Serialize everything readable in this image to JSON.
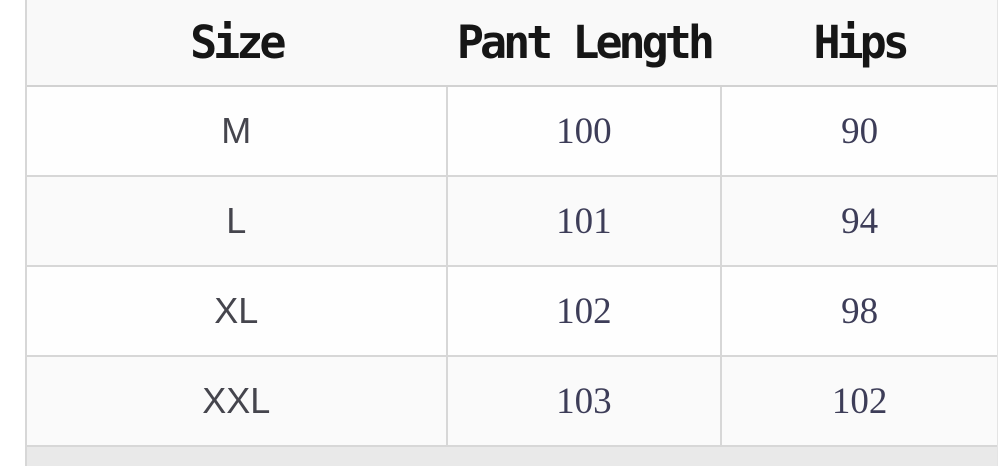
{
  "chart_data": {
    "type": "table",
    "title": "",
    "columns": [
      "Size",
      "Pant Length",
      "Hips"
    ],
    "rows": [
      [
        "M",
        100,
        90
      ],
      [
        "L",
        101,
        94
      ],
      [
        "XL",
        102,
        98
      ],
      [
        "XXL",
        103,
        102
      ]
    ]
  },
  "table": {
    "headers": [
      "Size",
      "Pant Length",
      "Hips"
    ],
    "rows": [
      {
        "size": "M",
        "pant_length": "100",
        "hips": "90"
      },
      {
        "size": "L",
        "pant_length": "101",
        "hips": "94"
      },
      {
        "size": "XL",
        "pant_length": "102",
        "hips": "98"
      },
      {
        "size": "XXL",
        "pant_length": "103",
        "hips": "102"
      }
    ]
  },
  "colors": {
    "header_bg": "#f9f9f9",
    "row_bg": "#fefefe",
    "row_stripe_bg": "#fafafa",
    "grid_border": "#d7d7d7",
    "header_text": "#161616",
    "size_text": "#45454d",
    "number_text": "#3d3d58",
    "partial_row_bg": "#e9e9e9",
    "page_bg": "#ffffff"
  }
}
